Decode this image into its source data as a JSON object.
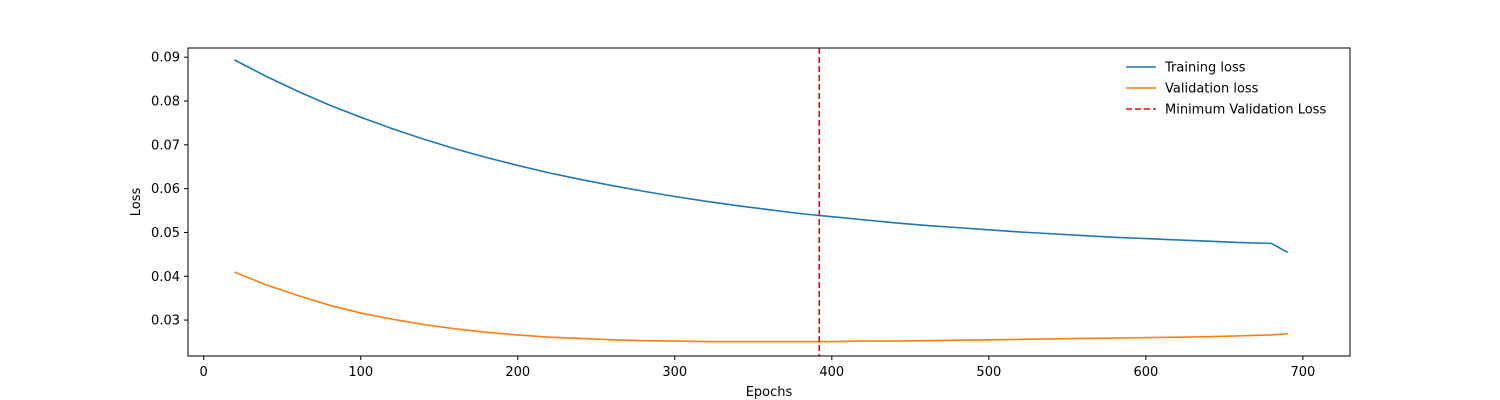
{
  "chart_data": {
    "type": "line",
    "xlabel": "Epochs",
    "ylabel": "Loss",
    "xlim": [
      -10,
      730
    ],
    "ylim": [
      0.0218,
      0.0921
    ],
    "x_ticks": [
      0,
      100,
      200,
      300,
      400,
      500,
      600,
      700
    ],
    "y_ticks": [
      0.03,
      0.04,
      0.05,
      0.06,
      0.07,
      0.08,
      0.09
    ],
    "x": [
      20,
      40,
      60,
      80,
      100,
      120,
      140,
      160,
      180,
      200,
      220,
      240,
      260,
      280,
      300,
      320,
      340,
      360,
      380,
      400,
      420,
      440,
      460,
      480,
      500,
      520,
      540,
      560,
      580,
      600,
      620,
      640,
      660,
      680,
      690
    ],
    "series": [
      {
        "name": "Training loss",
        "color": "#1f77b4",
        "style": "solid",
        "values": [
          0.0893,
          0.0856,
          0.0822,
          0.0791,
          0.0763,
          0.0737,
          0.0713,
          0.0691,
          0.0671,
          0.0653,
          0.0636,
          0.0621,
          0.0607,
          0.0594,
          0.0582,
          0.0571,
          0.0561,
          0.0552,
          0.0543,
          0.0536,
          0.0529,
          0.0522,
          0.0516,
          0.0511,
          0.0506,
          0.0501,
          0.0497,
          0.0493,
          0.0489,
          0.0486,
          0.0483,
          0.048,
          0.0477,
          0.0475,
          0.0455
        ]
      },
      {
        "name": "Validation loss",
        "color": "#ff7f0e",
        "style": "solid",
        "values": [
          0.0409,
          0.038,
          0.0356,
          0.0334,
          0.0316,
          0.0302,
          0.029,
          0.028,
          0.0272,
          0.0266,
          0.0261,
          0.0258,
          0.0255,
          0.0253,
          0.0252,
          0.0251,
          0.0251,
          0.0251,
          0.0251,
          0.0251,
          0.0252,
          0.0252,
          0.0253,
          0.0254,
          0.0255,
          0.0256,
          0.0257,
          0.0258,
          0.0259,
          0.026,
          0.0261,
          0.0262,
          0.0264,
          0.0266,
          0.0269
        ]
      }
    ],
    "vline": {
      "name": "Minimum Validation Loss",
      "x": 392,
      "color": "#ff0000",
      "style": "dashed"
    },
    "legend_position": "top-right",
    "grid": false
  }
}
